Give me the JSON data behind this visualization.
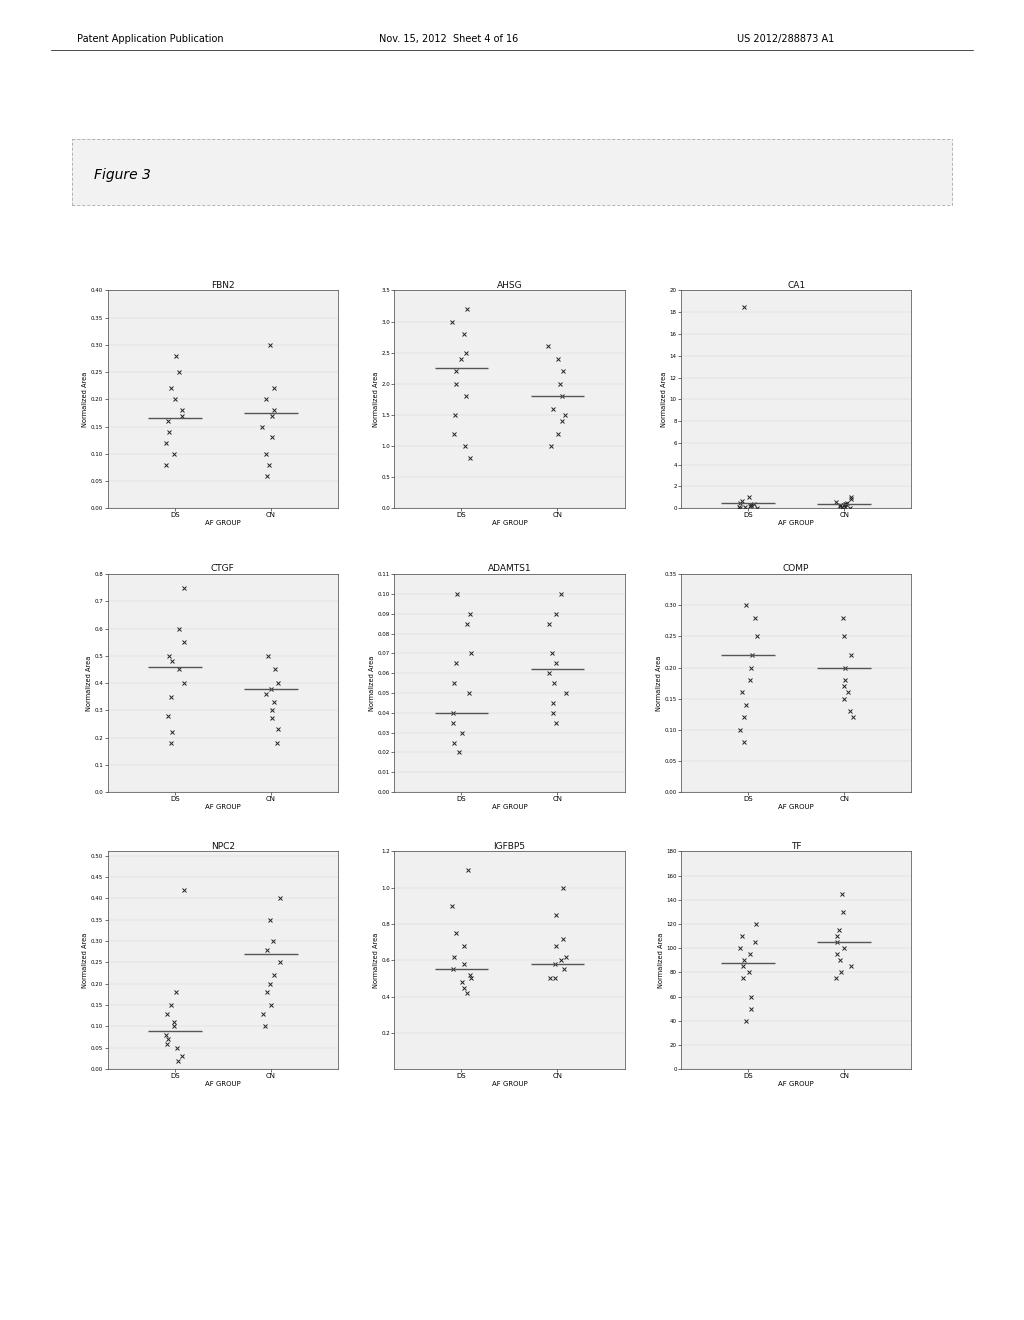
{
  "page_header_left": "Patent Application Publication",
  "page_header_mid": "Nov. 15, 2012  Sheet 4 of 16",
  "page_header_right": "US 2012/288873 A1",
  "figure_label": "Figure 3",
  "background_color": "#ffffff",
  "plots": [
    {
      "title": "FBN2",
      "xlabel": "AF GROUP",
      "ylabel": "Normalized Area",
      "xticks": [
        "DS",
        "CN"
      ],
      "ylim": [
        0.0,
        0.4
      ],
      "ytick_vals": [
        0.0,
        0.05,
        0.1,
        0.15,
        0.2,
        0.25,
        0.3,
        0.35,
        0.4
      ],
      "ds_points": [
        0.28,
        0.25,
        0.22,
        0.2,
        0.18,
        0.17,
        0.16,
        0.14,
        0.12,
        0.1,
        0.08
      ],
      "cn_points": [
        0.3,
        0.22,
        0.2,
        0.18,
        0.17,
        0.15,
        0.13,
        0.1,
        0.08,
        0.06
      ],
      "ds_mean": 0.165,
      "cn_mean": 0.175
    },
    {
      "title": "AHSG",
      "xlabel": "AF GROUP",
      "ylabel": "Normalized Area",
      "xticks": [
        "DS",
        "CN"
      ],
      "ylim": [
        0.0,
        3.5
      ],
      "ytick_vals": [
        0.0,
        0.5,
        1.0,
        1.5,
        2.0,
        2.5,
        3.0,
        3.5
      ],
      "ds_points": [
        3.2,
        3.0,
        2.8,
        2.5,
        2.4,
        2.2,
        2.0,
        1.8,
        1.5,
        1.2,
        1.0,
        0.8
      ],
      "cn_points": [
        2.6,
        2.4,
        2.2,
        2.0,
        1.8,
        1.6,
        1.5,
        1.4,
        1.2,
        1.0
      ],
      "ds_mean": 2.25,
      "cn_mean": 1.8
    },
    {
      "title": "CA1",
      "xlabel": "AF GROUP",
      "ylabel": "Normalized Area",
      "xticks": [
        "DS",
        "CN"
      ],
      "ylim": [
        0,
        20
      ],
      "ytick_vals": [
        0,
        2,
        4,
        6,
        8,
        10,
        12,
        14,
        16,
        18,
        20
      ],
      "ds_points": [
        18.5,
        1.0,
        0.7,
        0.5,
        0.4,
        0.3,
        0.25,
        0.2,
        0.15,
        0.1,
        0.05,
        0.02
      ],
      "cn_points": [
        1.0,
        0.8,
        0.6,
        0.45,
        0.4,
        0.35,
        0.3,
        0.25,
        0.2,
        0.15,
        0.1,
        0.05
      ],
      "ds_mean": 0.45,
      "cn_mean": 0.38
    },
    {
      "title": "CTGF",
      "xlabel": "AF GROUP",
      "ylabel": "Normalized Area",
      "xticks": [
        "DS",
        "CN"
      ],
      "ylim": [
        0.0,
        0.8
      ],
      "ytick_vals": [
        0.0,
        0.1,
        0.2,
        0.3,
        0.4,
        0.5,
        0.6,
        0.7,
        0.8
      ],
      "ds_points": [
        0.75,
        0.6,
        0.55,
        0.5,
        0.48,
        0.45,
        0.4,
        0.35,
        0.28,
        0.22,
        0.18
      ],
      "cn_points": [
        0.5,
        0.45,
        0.4,
        0.38,
        0.36,
        0.33,
        0.3,
        0.27,
        0.23,
        0.18
      ],
      "ds_mean": 0.46,
      "cn_mean": 0.38
    },
    {
      "title": "ADAMTS1",
      "xlabel": "AF GROUP",
      "ylabel": "Normalized Area",
      "xticks": [
        "DS",
        "CN"
      ],
      "ylim": [
        0.0,
        0.11
      ],
      "ytick_vals": [
        0.0,
        0.01,
        0.02,
        0.03,
        0.04,
        0.05,
        0.06,
        0.07,
        0.08,
        0.09,
        0.1,
        0.11
      ],
      "ds_points": [
        0.1,
        0.09,
        0.085,
        0.07,
        0.065,
        0.055,
        0.05,
        0.04,
        0.035,
        0.03,
        0.025,
        0.02
      ],
      "cn_points": [
        0.1,
        0.09,
        0.085,
        0.07,
        0.065,
        0.06,
        0.055,
        0.05,
        0.045,
        0.04,
        0.035
      ],
      "ds_mean": 0.04,
      "cn_mean": 0.062
    },
    {
      "title": "COMP",
      "xlabel": "AF GROUP",
      "ylabel": "Normalized Area",
      "xticks": [
        "DS",
        "CN"
      ],
      "ylim": [
        0.0,
        0.35
      ],
      "ytick_vals": [
        0.0,
        0.05,
        0.1,
        0.15,
        0.2,
        0.25,
        0.3,
        0.35
      ],
      "ds_points": [
        0.3,
        0.28,
        0.25,
        0.22,
        0.2,
        0.18,
        0.16,
        0.14,
        0.12,
        0.1,
        0.08
      ],
      "cn_points": [
        0.28,
        0.25,
        0.22,
        0.2,
        0.18,
        0.17,
        0.16,
        0.15,
        0.13,
        0.12
      ],
      "ds_mean": 0.22,
      "cn_mean": 0.2
    },
    {
      "title": "NPC2",
      "xlabel": "AF GROUP",
      "ylabel": "Normalized Area",
      "xticks": [
        "DS",
        "CN"
      ],
      "ylim": [
        0.0,
        0.51
      ],
      "ytick_vals": [
        0.0,
        0.05,
        0.1,
        0.15,
        0.2,
        0.25,
        0.3,
        0.35,
        0.4,
        0.45,
        0.5
      ],
      "ds_points": [
        0.42,
        0.18,
        0.15,
        0.13,
        0.11,
        0.1,
        0.08,
        0.07,
        0.06,
        0.05,
        0.03,
        0.02
      ],
      "cn_points": [
        0.4,
        0.35,
        0.3,
        0.28,
        0.25,
        0.22,
        0.2,
        0.18,
        0.15,
        0.13,
        0.1
      ],
      "ds_mean": 0.09,
      "cn_mean": 0.27
    },
    {
      "title": "IGFBP5",
      "xlabel": "AF GROUP",
      "ylabel": "Normalized Area",
      "xticks": [
        "DS",
        "CN"
      ],
      "ylim": [
        0.0,
        1.2
      ],
      "ytick_vals": [
        0.2,
        0.4,
        0.6,
        0.8,
        1.0,
        1.2
      ],
      "ds_points": [
        1.1,
        0.9,
        0.75,
        0.68,
        0.62,
        0.58,
        0.55,
        0.52,
        0.5,
        0.48,
        0.45,
        0.42
      ],
      "cn_points": [
        1.0,
        0.85,
        0.72,
        0.68,
        0.62,
        0.6,
        0.58,
        0.55,
        0.5,
        0.5
      ],
      "ds_mean": 0.55,
      "cn_mean": 0.58
    },
    {
      "title": "TF",
      "xlabel": "AF GROUP",
      "ylabel": "Normalized Area",
      "xticks": [
        "DS",
        "CN"
      ],
      "ylim": [
        0,
        180
      ],
      "ytick_vals": [
        0,
        20,
        40,
        60,
        80,
        100,
        120,
        140,
        160,
        180
      ],
      "ds_points": [
        120,
        110,
        105,
        100,
        95,
        90,
        85,
        80,
        75,
        60,
        50,
        40
      ],
      "cn_points": [
        145,
        130,
        115,
        110,
        105,
        100,
        95,
        90,
        85,
        80,
        75
      ],
      "ds_mean": 88,
      "cn_mean": 105
    }
  ]
}
